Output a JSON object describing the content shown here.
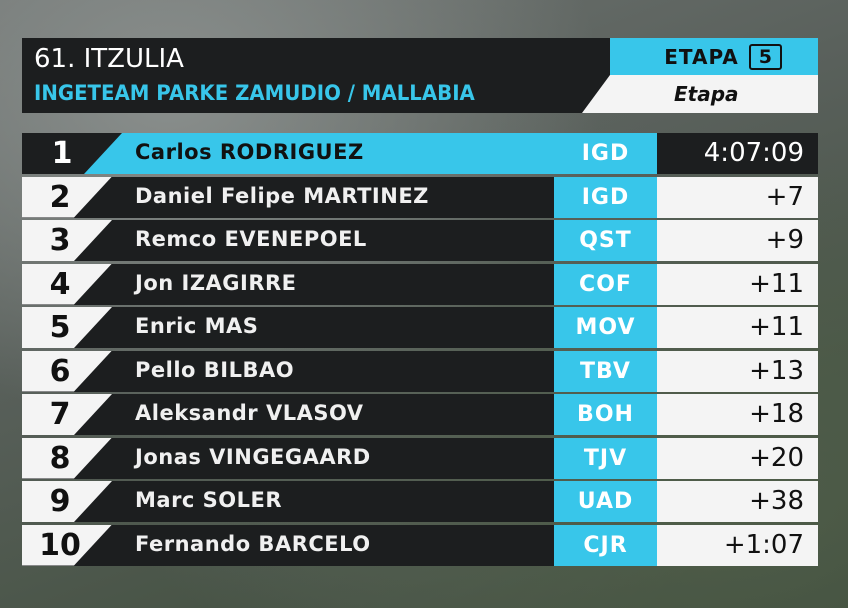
{
  "header": {
    "race_title": "61. ITZULIA",
    "stage_title": "INGETEAM PARKE ZAMUDIO / MALLABIA",
    "stage_label": "ETAPA",
    "stage_number": "5",
    "classification": "Etapa"
  },
  "colors": {
    "accent": "#38c6ea",
    "dark": "#1c1e1f",
    "light": "#f4f4f4"
  },
  "standings": [
    {
      "pos": "1",
      "rider": "Carlos RODRIGUEZ",
      "team": "IGD",
      "time": "4:07:09"
    },
    {
      "pos": "2",
      "rider": "Daniel Felipe MARTINEZ",
      "team": "IGD",
      "time": "+7"
    },
    {
      "pos": "3",
      "rider": "Remco EVENEPOEL",
      "team": "QST",
      "time": "+9"
    },
    {
      "pos": "4",
      "rider": "Jon IZAGIRRE",
      "team": "COF",
      "time": "+11"
    },
    {
      "pos": "5",
      "rider": "Enric MAS",
      "team": "MOV",
      "time": "+11"
    },
    {
      "pos": "6",
      "rider": "Pello BILBAO",
      "team": "TBV",
      "time": "+13"
    },
    {
      "pos": "7",
      "rider": "Aleksandr VLASOV",
      "team": "BOH",
      "time": "+18"
    },
    {
      "pos": "8",
      "rider": "Jonas VINGEGAARD",
      "team": "TJV",
      "time": "+20"
    },
    {
      "pos": "9",
      "rider": "Marc SOLER",
      "team": "UAD",
      "time": "+38"
    },
    {
      "pos": "10",
      "rider": "Fernando BARCELO",
      "team": "CJR",
      "time": "+1:07"
    }
  ]
}
